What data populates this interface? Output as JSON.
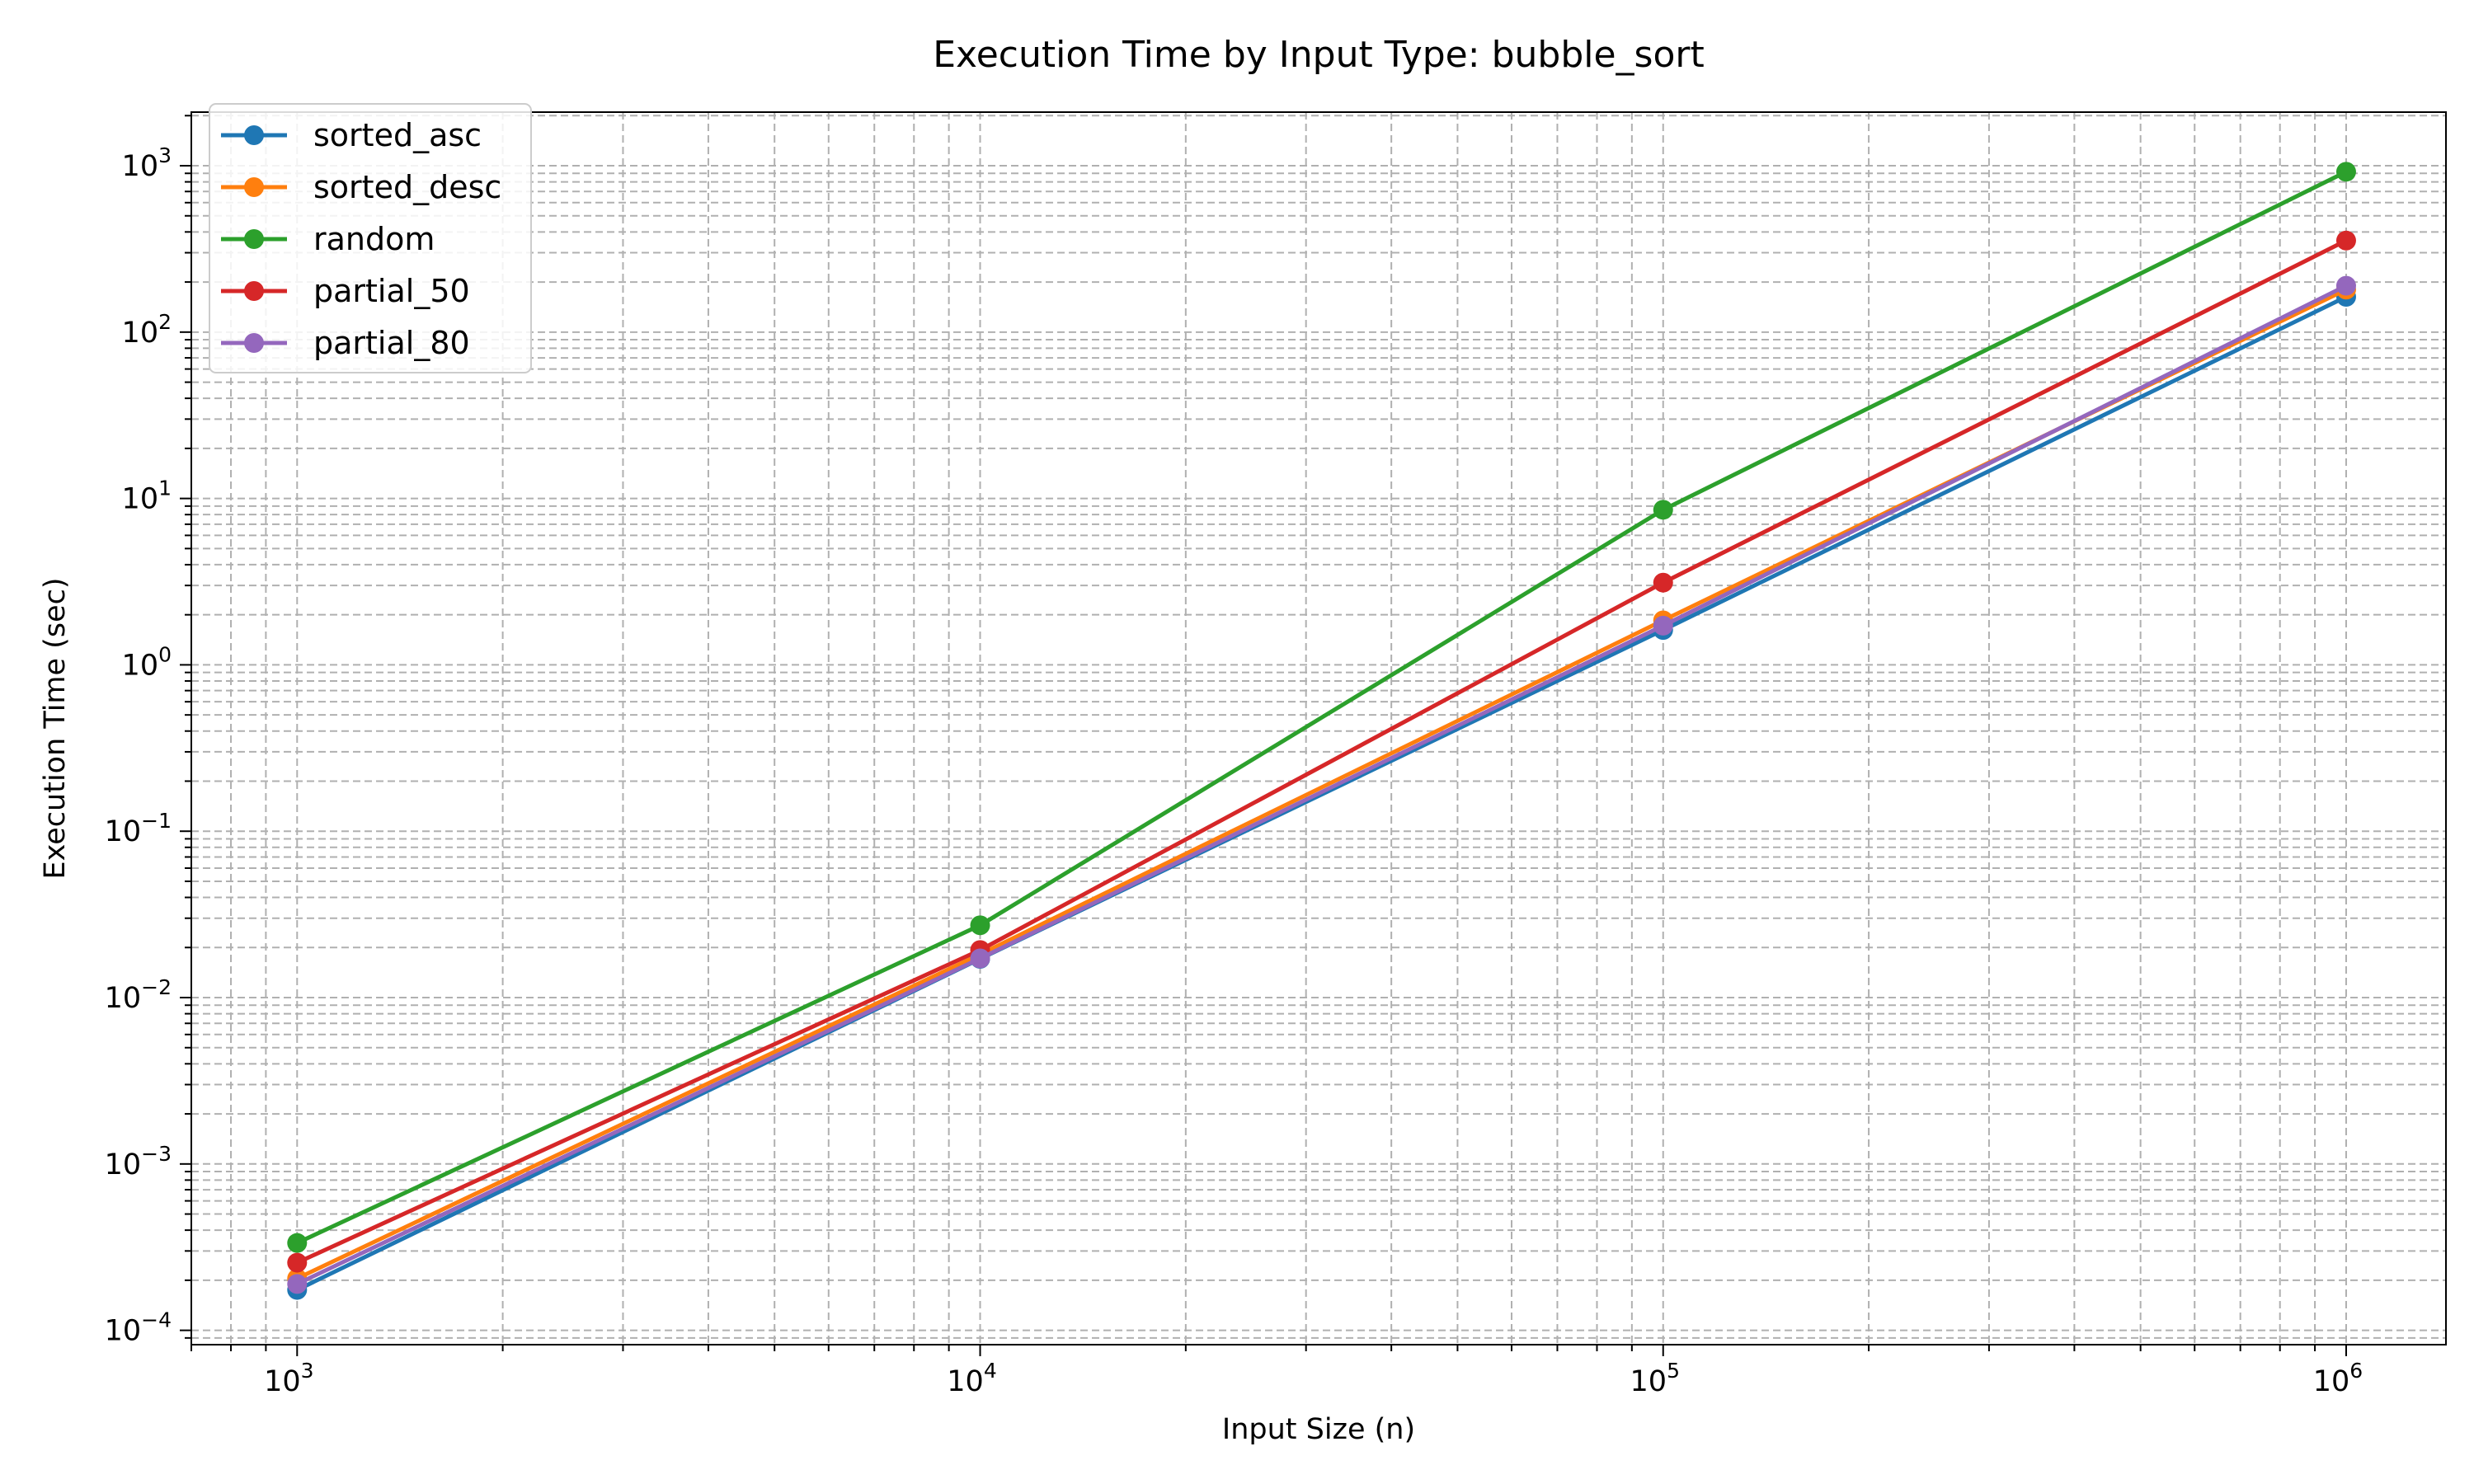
{
  "chart_data": {
    "type": "line",
    "title": "Execution Time by Input Type: bubble_sort",
    "xlabel": "Input Size (n)",
    "ylabel": "Execution Time (sec)",
    "xscale": "log",
    "yscale": "log",
    "xlim": [
      700,
      1400000
    ],
    "ylim": [
      8.2e-05,
      2100
    ],
    "grid": "both (major and minor), dashed",
    "legend_position": "upper-left",
    "x": [
      1000,
      10000,
      100000,
      1000000
    ],
    "x_ticks": [
      {
        "value": 1000,
        "base": "10",
        "exp": "3"
      },
      {
        "value": 10000,
        "base": "10",
        "exp": "4"
      },
      {
        "value": 100000,
        "base": "10",
        "exp": "5"
      },
      {
        "value": 1000000,
        "base": "10",
        "exp": "6"
      }
    ],
    "y_ticks": [
      {
        "value": 0.0001,
        "base": "10",
        "exp": "−4"
      },
      {
        "value": 0.001,
        "base": "10",
        "exp": "−3"
      },
      {
        "value": 0.01,
        "base": "10",
        "exp": "−2"
      },
      {
        "value": 0.1,
        "base": "10",
        "exp": "−1"
      },
      {
        "value": 1,
        "base": "10",
        "exp": "0"
      },
      {
        "value": 10,
        "base": "10",
        "exp": "1"
      },
      {
        "value": 100,
        "base": "10",
        "exp": "2"
      },
      {
        "value": 1000,
        "base": "10",
        "exp": "3"
      }
    ],
    "series": [
      {
        "name": "sorted_asc",
        "color": "#1f77b4",
        "values": [
          0.000175,
          0.0171,
          1.62,
          163
        ]
      },
      {
        "name": "sorted_desc",
        "color": "#ff7f0e",
        "values": [
          0.000205,
          0.0182,
          1.85,
          180
        ]
      },
      {
        "name": "random",
        "color": "#2ca02c",
        "values": [
          0.000335,
          0.0272,
          8.55,
          920
        ]
      },
      {
        "name": "partial_50",
        "color": "#d62728",
        "values": [
          0.000255,
          0.0193,
          3.12,
          355
        ]
      },
      {
        "name": "partial_80",
        "color": "#9467bd",
        "values": [
          0.00019,
          0.0172,
          1.72,
          190
        ]
      }
    ]
  }
}
